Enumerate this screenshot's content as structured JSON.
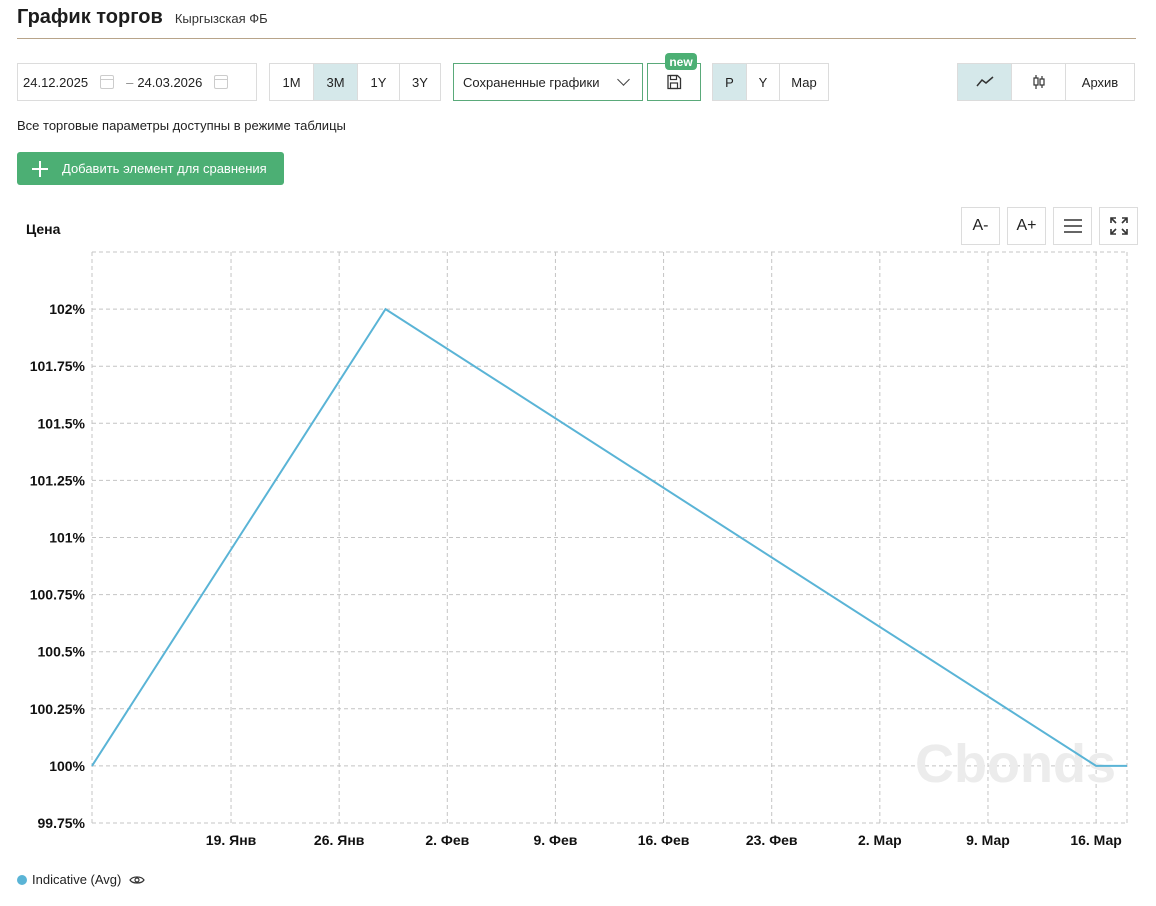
{
  "header": {
    "title": "График торгов",
    "subtitle": "Кыргызская ФБ"
  },
  "toolbar": {
    "date_from": "24.12.2025",
    "date_separator": "–",
    "date_to": "24.03.2026",
    "periods": [
      {
        "label": "1M",
        "active": false
      },
      {
        "label": "3M",
        "active": true
      },
      {
        "label": "1Y",
        "active": false
      },
      {
        "label": "3Y",
        "active": false
      }
    ],
    "saved_charts_label": "Сохраненные графики",
    "new_badge": "new",
    "modes": [
      {
        "label": "P",
        "active": true
      },
      {
        "label": "Y",
        "active": false
      },
      {
        "label": "Мар",
        "active": false
      }
    ],
    "view_line_active": true,
    "archive_label": "Архив"
  },
  "note": "Все торговые параметры доступны в режиме таблицы",
  "add_compare_label": "Добавить элемент для сравнения",
  "chart_tools": {
    "font_down": "A-",
    "font_up": "A+"
  },
  "watermark": "Cbonds",
  "colors": {
    "line": "#5ab4d6",
    "accent": "#4caf74",
    "active_bg": "#d5e8ea"
  },
  "chart_data": {
    "type": "line",
    "ylabel": "Цена",
    "ylim": [
      99.75,
      102.25
    ],
    "yticks": [
      {
        "value": 102,
        "label": "102%"
      },
      {
        "value": 101.75,
        "label": "101.75%"
      },
      {
        "value": 101.5,
        "label": "101.5%"
      },
      {
        "value": 101.25,
        "label": "101.25%"
      },
      {
        "value": 101,
        "label": "101%"
      },
      {
        "value": 100.75,
        "label": "100.75%"
      },
      {
        "value": 100.5,
        "label": "100.5%"
      },
      {
        "value": 100.25,
        "label": "100.25%"
      },
      {
        "value": 100,
        "label": "100%"
      },
      {
        "value": 99.75,
        "label": "99.75%"
      }
    ],
    "xlim": [
      "2026-01-10",
      "2026-03-18"
    ],
    "xticks": [
      {
        "date": "2026-01-19",
        "label": "19. Янв"
      },
      {
        "date": "2026-01-26",
        "label": "26. Янв"
      },
      {
        "date": "2026-02-02",
        "label": "2. Фев"
      },
      {
        "date": "2026-02-09",
        "label": "9. Фев"
      },
      {
        "date": "2026-02-16",
        "label": "16. Фев"
      },
      {
        "date": "2026-02-23",
        "label": "23. Фев"
      },
      {
        "date": "2026-03-02",
        "label": "2. Мар"
      },
      {
        "date": "2026-03-09",
        "label": "9. Мар"
      },
      {
        "date": "2026-03-16",
        "label": "16. Мар"
      }
    ],
    "grid": true,
    "legend_position": "bottom-left",
    "series": [
      {
        "name": "Indicative (Avg)",
        "color": "#5ab4d6",
        "points": [
          {
            "x": "2026-01-10",
            "y": 100.0
          },
          {
            "x": "2026-01-29",
            "y": 102.0
          },
          {
            "x": "2026-03-16",
            "y": 100.0
          },
          {
            "x": "2026-03-18",
            "y": 100.0
          }
        ]
      }
    ]
  }
}
